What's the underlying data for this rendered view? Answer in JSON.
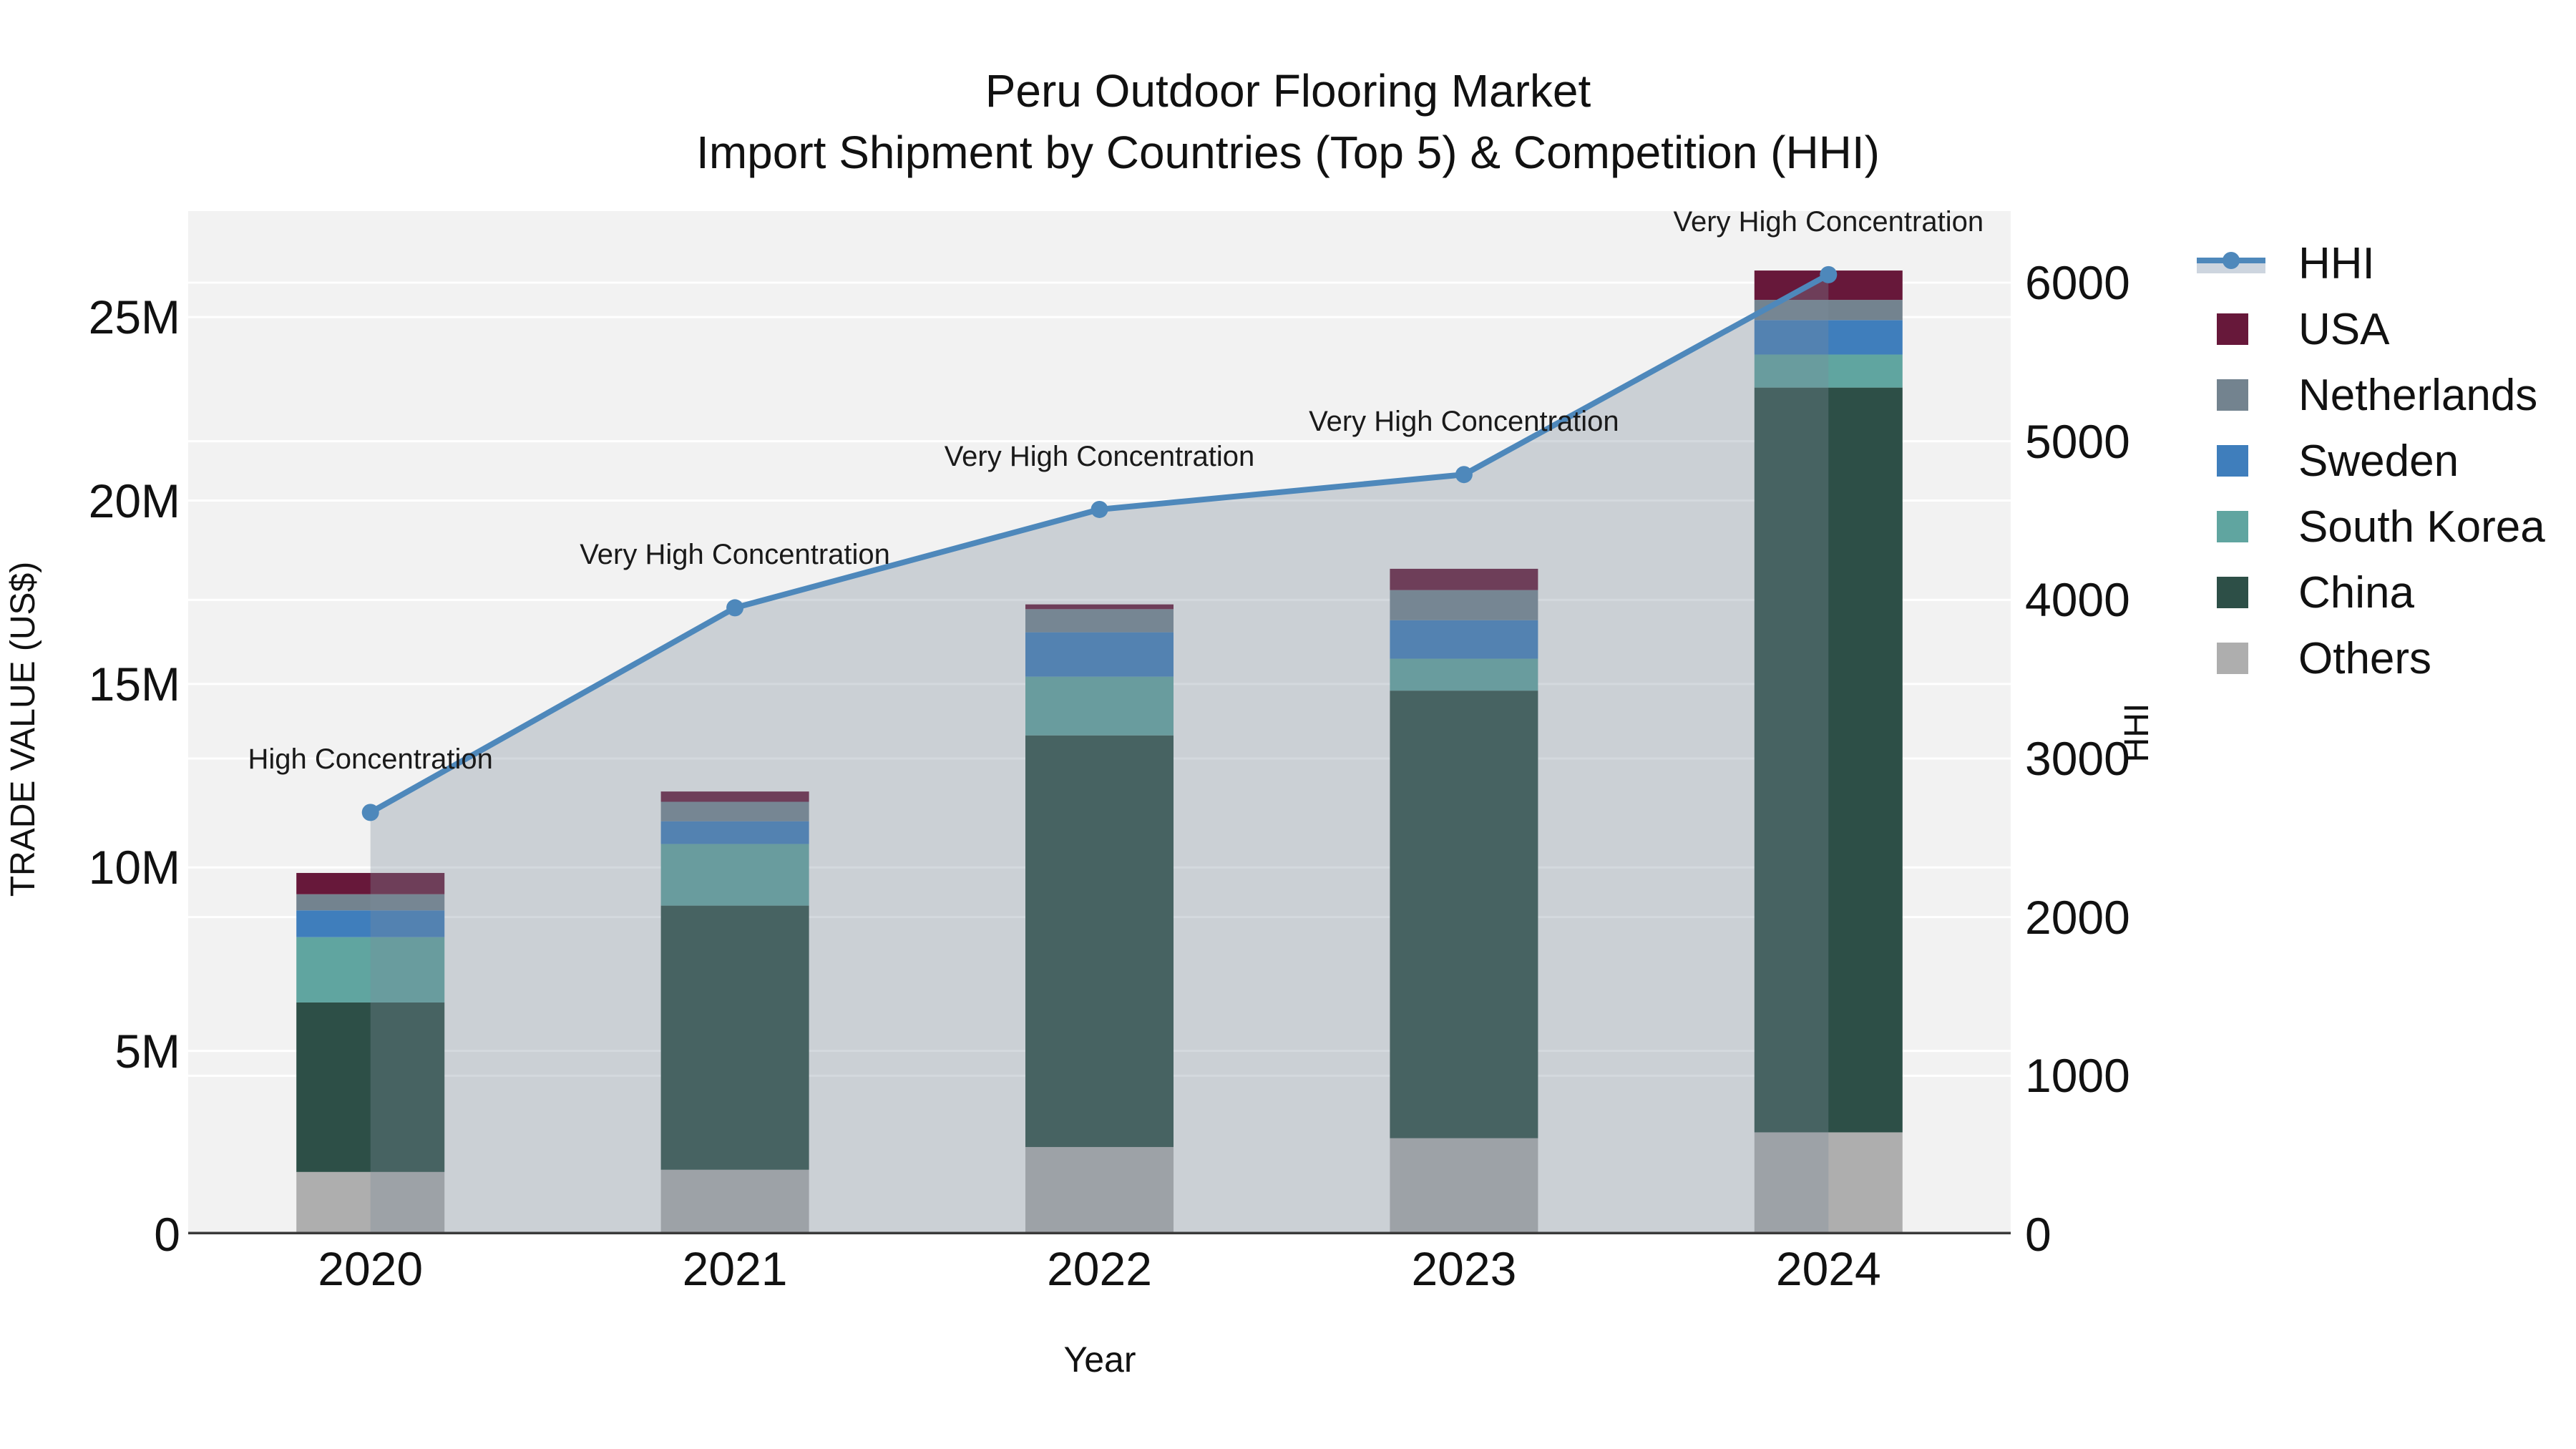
{
  "title": {
    "line1": "Peru Outdoor Flooring Market",
    "line2": "Import Shipment by Countries (Top 5) & Competition (HHI)"
  },
  "axes": {
    "y_left_label": "TRADE VALUE (US$)",
    "y_right_label": "HHI",
    "x_label": "Year",
    "y_left_tick_labels": [
      "0",
      "5M",
      "10M",
      "15M",
      "20M",
      "25M"
    ],
    "y_right_tick_labels": [
      "0",
      "1000",
      "2000",
      "3000",
      "4000",
      "5000",
      "6000"
    ],
    "x_tick_labels": [
      "2020",
      "2021",
      "2022",
      "2023",
      "2024"
    ]
  },
  "legend": {
    "items": [
      {
        "label": "HHI",
        "type": "line",
        "color": "#4E88BB"
      },
      {
        "label": "USA",
        "type": "swatch",
        "color": "#67183A"
      },
      {
        "label": "Netherlands",
        "type": "swatch",
        "color": "#73838F"
      },
      {
        "label": "Sweden",
        "type": "swatch",
        "color": "#3F7EBC"
      },
      {
        "label": "South Korea",
        "type": "swatch",
        "color": "#60A5A0"
      },
      {
        "label": "China",
        "type": "swatch",
        "color": "#2D4F47"
      },
      {
        "label": "Others",
        "type": "swatch",
        "color": "#AEAEAE"
      }
    ]
  },
  "colors": {
    "plot_bg": "#F2F2F2",
    "grid": "#FFFFFF",
    "axis_line": "#3A3A3A",
    "hhi_line": "#4E88BB",
    "hhi_area_fill": "rgba(123,140,156,0.33)",
    "legend_band": "#CDD5DF",
    "text": "#111111"
  },
  "chart_data": {
    "type": "bar+line",
    "subtype": "stacked bars (left axis, trade value in millions US$) with HHI line (right axis)",
    "categories": [
      "2020",
      "2021",
      "2022",
      "2023",
      "2024"
    ],
    "stack_order_bottom_to_top": [
      "Others",
      "China",
      "South Korea",
      "Sweden",
      "Netherlands",
      "USA"
    ],
    "series": [
      {
        "name": "Others",
        "color": "#AEAEAE",
        "values_musd": [
          1.7,
          1.76,
          2.38,
          2.62,
          2.78
        ]
      },
      {
        "name": "China",
        "color": "#2D4F47",
        "values_musd": [
          4.62,
          7.2,
          11.22,
          12.2,
          20.3
        ]
      },
      {
        "name": "South Korea",
        "color": "#60A5A0",
        "values_musd": [
          1.78,
          1.68,
          1.6,
          0.87,
          0.9
        ]
      },
      {
        "name": "Sweden",
        "color": "#3F7EBC",
        "values_musd": [
          0.73,
          0.62,
          1.21,
          1.05,
          0.94
        ]
      },
      {
        "name": "Netherlands",
        "color": "#73838F",
        "values_musd": [
          0.44,
          0.53,
          0.63,
          0.82,
          0.55
        ]
      },
      {
        "name": "USA",
        "color": "#67183A",
        "values_musd": [
          0.58,
          0.28,
          0.13,
          0.58,
          0.8
        ]
      }
    ],
    "bar_totals_musd": [
      9.85,
      12.07,
      17.17,
      18.14,
      26.27
    ],
    "hhi": {
      "name": "HHI",
      "values": [
        2660,
        3950,
        4570,
        4790,
        6050
      ],
      "annotations": [
        "High Concentration",
        "Very High Concentration",
        "Very High Concentration",
        "Very High Concentration",
        "Very High Concentration"
      ]
    },
    "title": "Peru Outdoor Flooring Market — Import Shipment by Countries (Top 5) & Competition (HHI)",
    "xlabel": "Year",
    "ylabel_left": "TRADE VALUE (US$)",
    "ylabel_right": "HHI",
    "y_left_ticks_musd": [
      0,
      5,
      10,
      15,
      20,
      25
    ],
    "y_right_ticks": [
      0,
      1000,
      2000,
      3000,
      4000,
      5000,
      6000
    ],
    "ylim_left_musd": [
      0,
      27.89
    ],
    "ylim_right": [
      0,
      6451
    ],
    "grid": true,
    "legend_position": "outside-right-top",
    "hhi_area_filled": true
  }
}
